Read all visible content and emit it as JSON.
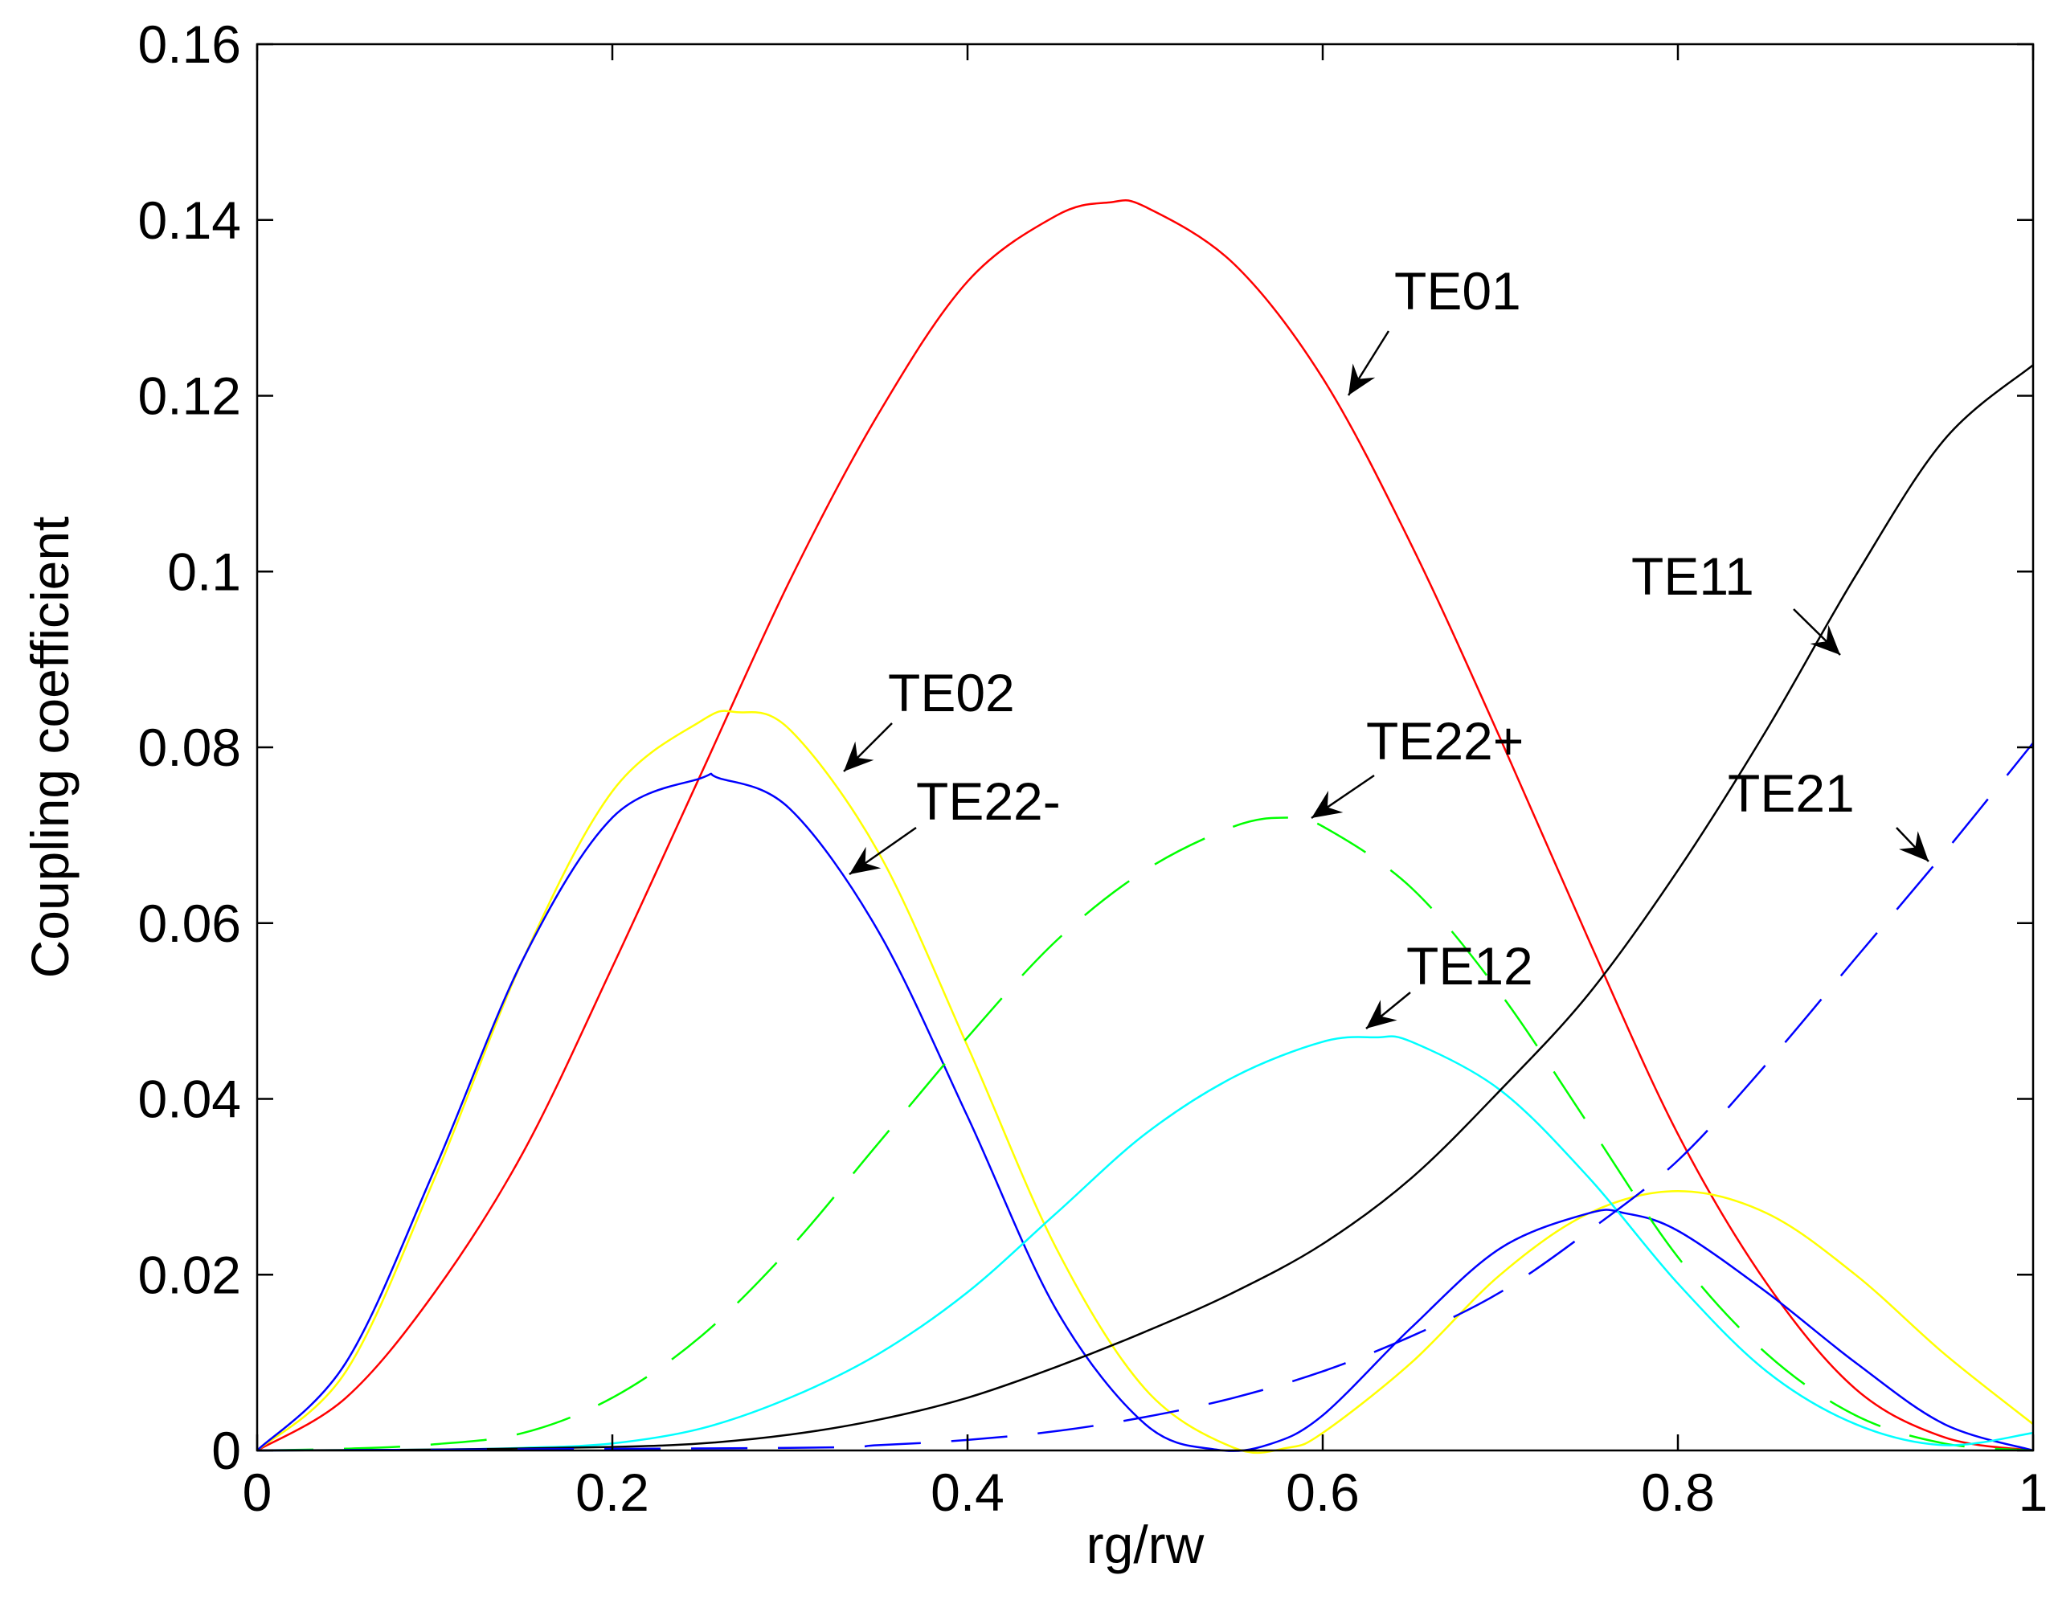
{
  "chart_data": {
    "type": "line",
    "title": "",
    "xlabel": "rg/rw",
    "ylabel": "Coupling coefficient",
    "xlim": [
      0,
      1
    ],
    "ylim": [
      0,
      0.16
    ],
    "xticks": [
      0,
      0.2,
      0.4,
      0.6,
      0.8,
      1
    ],
    "xtick_labels": [
      "0",
      "0.2",
      "0.4",
      "0.6",
      "0.8",
      "1"
    ],
    "yticks": [
      0,
      0.02,
      0.04,
      0.06,
      0.08,
      0.1,
      0.12,
      0.14,
      0.16
    ],
    "ytick_labels": [
      "0",
      "0.02",
      "0.04",
      "0.06",
      "0.08",
      "0.1",
      "0.12",
      "0.14",
      "0.16"
    ],
    "grid": false,
    "legend": "none",
    "series": [
      {
        "name": "TE01",
        "color": "#ff0000",
        "style": "solid",
        "x": [
          0,
          0.05,
          0.1,
          0.15,
          0.2,
          0.25,
          0.3,
          0.35,
          0.4,
          0.45,
          0.48,
          0.5,
          0.55,
          0.6,
          0.65,
          0.7,
          0.75,
          0.8,
          0.85,
          0.9,
          0.95,
          1.0
        ],
        "y": [
          0,
          0.006,
          0.018,
          0.034,
          0.055,
          0.077,
          0.099,
          0.118,
          0.133,
          0.1405,
          0.142,
          0.1415,
          0.135,
          0.122,
          0.103,
          0.081,
          0.058,
          0.036,
          0.019,
          0.007,
          0.0015,
          0
        ]
      },
      {
        "name": "TE02",
        "color": "#ffff00",
        "style": "solid",
        "x": [
          0,
          0.05,
          0.1,
          0.15,
          0.2,
          0.25,
          0.27,
          0.3,
          0.35,
          0.4,
          0.45,
          0.5,
          0.55,
          0.58,
          0.6,
          0.65,
          0.7,
          0.75,
          0.8,
          0.85,
          0.9,
          0.95,
          1.0
        ],
        "y": [
          0,
          0.009,
          0.031,
          0.056,
          0.075,
          0.083,
          0.084,
          0.082,
          0.068,
          0.046,
          0.023,
          0.007,
          0.0003,
          0.0003,
          0.002,
          0.01,
          0.02,
          0.027,
          0.0295,
          0.027,
          0.02,
          0.011,
          0.003
        ]
      },
      {
        "name": "TE22-",
        "color": "#0000ff",
        "style": "solid",
        "x": [
          0,
          0.05,
          0.1,
          0.15,
          0.2,
          0.25,
          0.26,
          0.3,
          0.35,
          0.4,
          0.45,
          0.5,
          0.54,
          0.57,
          0.6,
          0.65,
          0.7,
          0.75,
          0.77,
          0.8,
          0.85,
          0.9,
          0.95,
          1.0
        ],
        "y": [
          0,
          0.01,
          0.032,
          0.056,
          0.072,
          0.0765,
          0.0765,
          0.073,
          0.059,
          0.038,
          0.016,
          0.003,
          0.0001,
          0.0007,
          0.004,
          0.014,
          0.023,
          0.027,
          0.027,
          0.025,
          0.018,
          0.01,
          0.003,
          0
        ]
      },
      {
        "name": "TE22+",
        "color": "#00ff00",
        "style": "dashed",
        "x": [
          0,
          0.05,
          0.1,
          0.15,
          0.2,
          0.25,
          0.3,
          0.35,
          0.4,
          0.45,
          0.5,
          0.55,
          0.58,
          0.6,
          0.65,
          0.7,
          0.75,
          0.8,
          0.85,
          0.9,
          0.95,
          1.0
        ],
        "y": [
          0,
          0.0002,
          0.0007,
          0.002,
          0.006,
          0.013,
          0.023,
          0.035,
          0.047,
          0.058,
          0.066,
          0.071,
          0.072,
          0.071,
          0.064,
          0.052,
          0.037,
          0.022,
          0.011,
          0.004,
          0.0008,
          0
        ]
      },
      {
        "name": "TE12",
        "color": "#00ffff",
        "style": "solid",
        "x": [
          0,
          0.1,
          0.15,
          0.2,
          0.25,
          0.3,
          0.35,
          0.4,
          0.45,
          0.5,
          0.55,
          0.6,
          0.63,
          0.65,
          0.7,
          0.75,
          0.8,
          0.85,
          0.9,
          0.95,
          1.0
        ],
        "y": [
          0,
          0.0001,
          0.0003,
          0.0008,
          0.0025,
          0.006,
          0.011,
          0.018,
          0.027,
          0.036,
          0.0425,
          0.0465,
          0.047,
          0.0465,
          0.041,
          0.031,
          0.019,
          0.009,
          0.003,
          0.0006,
          0.002
        ]
      },
      {
        "name": "TE11",
        "color": "#000000",
        "style": "solid",
        "x": [
          0,
          0.1,
          0.2,
          0.25,
          0.3,
          0.35,
          0.4,
          0.45,
          0.5,
          0.55,
          0.6,
          0.65,
          0.7,
          0.75,
          0.8,
          0.85,
          0.9,
          0.95,
          1.0
        ],
        "y": [
          0,
          0.0001,
          0.0004,
          0.0008,
          0.0018,
          0.0035,
          0.006,
          0.0095,
          0.0135,
          0.018,
          0.0235,
          0.031,
          0.041,
          0.052,
          0.066,
          0.082,
          0.0995,
          0.115,
          0.1235
        ]
      },
      {
        "name": "TE21",
        "color": "#0000ff",
        "style": "dashed",
        "x": [
          0,
          0.3,
          0.35,
          0.4,
          0.45,
          0.5,
          0.55,
          0.6,
          0.65,
          0.7,
          0.75,
          0.8,
          0.85,
          0.9,
          0.95,
          1.0
        ],
        "y": [
          0,
          0.0003,
          0.0006,
          0.0012,
          0.0022,
          0.0038,
          0.006,
          0.009,
          0.013,
          0.018,
          0.025,
          0.033,
          0.044,
          0.056,
          0.068,
          0.0805
        ]
      }
    ],
    "annotations": [
      {
        "text": "TE01",
        "series": "TE01"
      },
      {
        "text": "TE02",
        "series": "TE02"
      },
      {
        "text": "TE22-",
        "series": "TE22-"
      },
      {
        "text": "TE22+",
        "series": "TE22+"
      },
      {
        "text": "TE12",
        "series": "TE12"
      },
      {
        "text": "TE11",
        "series": "TE11"
      },
      {
        "text": "TE21",
        "series": "TE21"
      }
    ]
  }
}
